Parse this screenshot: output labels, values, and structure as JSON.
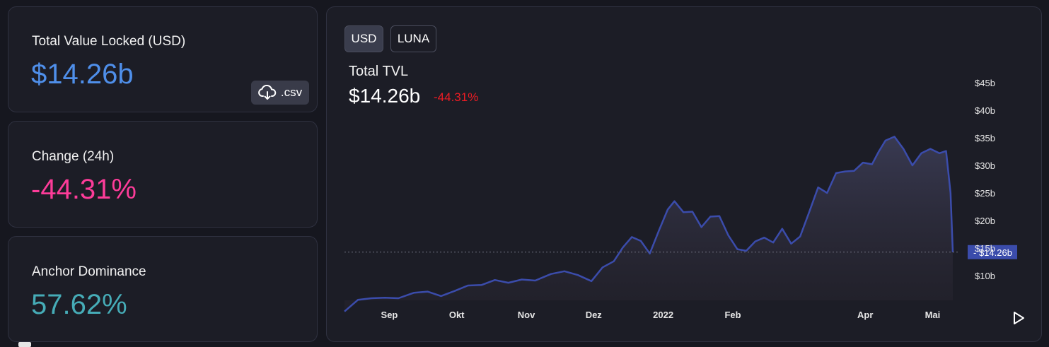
{
  "stats": {
    "tvl": {
      "label": "Total Value Locked (USD)",
      "value": "$14.26b",
      "color": "#4f8fea"
    },
    "change": {
      "label": "Change (24h)",
      "value": "-44.31%",
      "color": "#fd3c99"
    },
    "dominance": {
      "label": "Anchor Dominance",
      "value": "57.62%",
      "color": "#46acb7"
    }
  },
  "csv_button": {
    "label": ".csv",
    "icon": "cloud-download-icon"
  },
  "toggles": {
    "usd": "USD",
    "luna": "LUNA"
  },
  "play_icon": "play-icon",
  "colors": {
    "line": "#3b4cab",
    "negative": "#ed1c24",
    "marker_bg": "#3b4cab"
  },
  "chart_data": {
    "type": "area",
    "title": "Total TVL",
    "current_value": "$14.26b",
    "current_change": "-44.31%",
    "current_marker_label": "$14.26b",
    "current_marker_value": 14.26,
    "xlabel": "",
    "ylabel": "",
    "ylim": [
      3,
      47
    ],
    "grid": false,
    "legend": "none",
    "y_ticks": [
      {
        "label": "$10b",
        "value": 10
      },
      {
        "label": "$15b",
        "value": 15
      },
      {
        "label": "$20b",
        "value": 20
      },
      {
        "label": "$25b",
        "value": 25
      },
      {
        "label": "$30b",
        "value": 30
      },
      {
        "label": "$35b",
        "value": 35
      },
      {
        "label": "$40b",
        "value": 40
      },
      {
        "label": "$45b",
        "value": 45
      }
    ],
    "x_ticks": [
      {
        "label": "Sep",
        "date": "2021-09-01",
        "bold": false
      },
      {
        "label": "Okt",
        "date": "2021-10-01",
        "bold": false
      },
      {
        "label": "Nov",
        "date": "2021-11-01",
        "bold": false
      },
      {
        "label": "Dez",
        "date": "2021-12-01",
        "bold": false
      },
      {
        "label": "2022",
        "date": "2022-01-01",
        "bold": true
      },
      {
        "label": "Feb",
        "date": "2022-02-01",
        "bold": false
      },
      {
        "label": "Apr",
        "date": "2022-04-01",
        "bold": false
      },
      {
        "label": "Mai",
        "date": "2022-05-01",
        "bold": false
      }
    ],
    "series": [
      {
        "x": [
          "2021-08-12",
          "2021-08-18",
          "2021-08-24",
          "2021-08-30",
          "2021-09-05",
          "2021-09-12",
          "2021-09-18",
          "2021-09-24",
          "2021-09-30",
          "2021-10-06",
          "2021-10-12",
          "2021-10-18",
          "2021-10-24",
          "2021-10-30",
          "2021-11-05",
          "2021-11-12",
          "2021-11-18",
          "2021-11-24",
          "2021-11-30",
          "2021-12-05",
          "2021-12-10",
          "2021-12-14",
          "2021-12-18",
          "2021-12-22",
          "2021-12-26",
          "2021-12-30",
          "2022-01-03",
          "2022-01-06",
          "2022-01-10",
          "2022-01-14",
          "2022-01-18",
          "2022-01-22",
          "2022-01-26",
          "2022-01-30",
          "2022-02-03",
          "2022-02-07",
          "2022-02-11",
          "2022-02-15",
          "2022-02-19",
          "2022-02-23",
          "2022-02-27",
          "2022-03-03",
          "2022-03-07",
          "2022-03-11",
          "2022-03-15",
          "2022-03-19",
          "2022-03-23",
          "2022-03-27",
          "2022-03-31",
          "2022-04-04",
          "2022-04-07",
          "2022-04-10",
          "2022-04-14",
          "2022-04-18",
          "2022-04-22",
          "2022-04-26",
          "2022-04-30",
          "2022-05-04",
          "2022-05-07",
          "2022-05-09",
          "2022-05-10"
        ],
        "values": [
          3.5,
          5.6,
          5.9,
          6.0,
          5.9,
          6.9,
          7.1,
          6.3,
          7.2,
          8.2,
          8.3,
          9.2,
          8.7,
          9.3,
          9.1,
          10.3,
          10.8,
          10.1,
          9.0,
          11.5,
          12.6,
          15.1,
          17.0,
          16.3,
          14.0,
          18.1,
          22.0,
          23.5,
          21.5,
          21.6,
          18.8,
          20.7,
          20.8,
          17.3,
          14.8,
          14.5,
          16.2,
          16.9,
          16.0,
          18.5,
          15.8,
          17.1,
          21.5,
          26.0,
          25.0,
          28.6,
          28.9,
          29.0,
          30.5,
          30.2,
          32.5,
          34.5,
          35.2,
          33.0,
          30.0,
          32.2,
          33.0,
          32.2,
          32.6,
          25.0,
          14.26
        ]
      }
    ]
  }
}
